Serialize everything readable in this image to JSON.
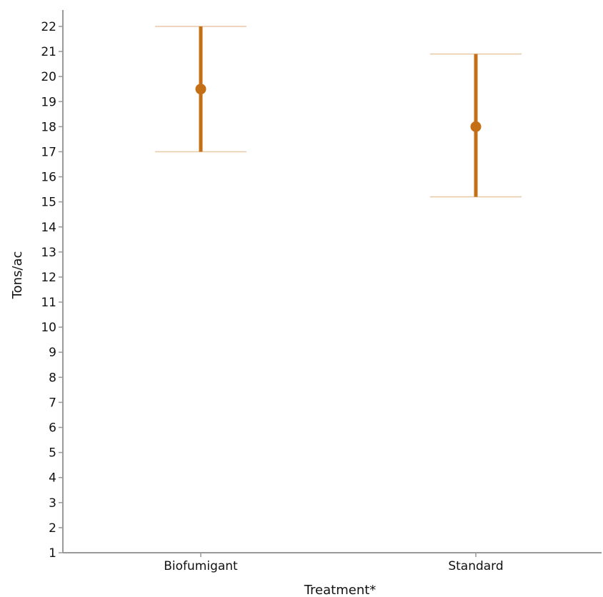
{
  "chart_data": {
    "type": "errorbar",
    "xlabel": "Treatment*",
    "ylabel": "Tons/ac",
    "ylim": [
      1,
      22
    ],
    "yticks": [
      1,
      2,
      3,
      4,
      5,
      6,
      7,
      8,
      9,
      10,
      11,
      12,
      13,
      14,
      15,
      16,
      17,
      18,
      19,
      20,
      21,
      22
    ],
    "categories": [
      "Biofumigant",
      "Standard"
    ],
    "series": [
      {
        "values": [
          19.5,
          18.0
        ],
        "lower": [
          17.0,
          15.2
        ],
        "upper": [
          22.0,
          20.9
        ]
      }
    ],
    "grid": false,
    "colors": {
      "marker": "#c46f16",
      "cap": "#e8c9a8",
      "axis": "#999999"
    }
  }
}
